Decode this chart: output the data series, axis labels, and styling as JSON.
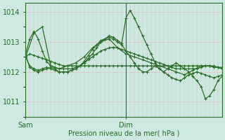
{
  "xlabel": "Pression niveau de la mer( hPa )",
  "ylim": [
    1010.5,
    1014.3
  ],
  "xlim": [
    0,
    47
  ],
  "yticks": [
    1011,
    1012,
    1013,
    1014
  ],
  "xtick_labels": [
    "Sam",
    "Dim"
  ],
  "xtick_positions": [
    0,
    24
  ],
  "vline_x": 24,
  "bg_color": "#cce8e0",
  "plot_bg_color": "#cce8e0",
  "line_color": "#2d6e2d",
  "marker": "+",
  "markersize": 3.5,
  "linewidth": 0.9,
  "series": [
    {
      "x": [
        0,
        1,
        2,
        3,
        4,
        5,
        6,
        7,
        8,
        9,
        10,
        11,
        12,
        13,
        14,
        15,
        16,
        17,
        18,
        19,
        20,
        21,
        22,
        23,
        24,
        25,
        26,
        27,
        28,
        29,
        30,
        31,
        32,
        33,
        34,
        35,
        36,
        37,
        38,
        39,
        40,
        41,
        42,
        43,
        44,
        45,
        46,
        47
      ],
      "y": [
        1012.5,
        1012.6,
        1012.55,
        1012.5,
        1012.45,
        1012.4,
        1012.35,
        1012.3,
        1012.25,
        1012.2,
        1012.2,
        1012.2,
        1012.2,
        1012.2,
        1012.2,
        1012.2,
        1012.2,
        1012.2,
        1012.2,
        1012.2,
        1012.2,
        1012.2,
        1012.2,
        1012.2,
        1012.2,
        1012.2,
        1012.2,
        1012.2,
        1012.2,
        1012.2,
        1012.2,
        1012.2,
        1012.2,
        1012.2,
        1012.2,
        1012.2,
        1012.2,
        1012.2,
        1012.2,
        1012.2,
        1012.2,
        1012.2,
        1012.2,
        1012.2,
        1012.2,
        1012.2,
        1012.15,
        1012.1
      ]
    },
    {
      "x": [
        0,
        1,
        2,
        3,
        4,
        5,
        6,
        7,
        8,
        9,
        10,
        11,
        12,
        13,
        14,
        15,
        16,
        17,
        18,
        19,
        20,
        21,
        22,
        23,
        24,
        25,
        26,
        27,
        28,
        29,
        30,
        31,
        32,
        33,
        34,
        35,
        36,
        37,
        38,
        39,
        40,
        41,
        42,
        43,
        44,
        45,
        46,
        47
      ],
      "y": [
        1012.6,
        1013.1,
        1013.35,
        1013.1,
        1012.7,
        1012.35,
        1012.2,
        1012.15,
        1012.1,
        1012.1,
        1012.1,
        1012.1,
        1012.15,
        1012.2,
        1012.3,
        1012.4,
        1012.5,
        1012.6,
        1012.7,
        1012.75,
        1012.8,
        1012.82,
        1012.8,
        1012.75,
        1012.7,
        1012.65,
        1012.6,
        1012.55,
        1012.5,
        1012.45,
        1012.4,
        1012.35,
        1012.3,
        1012.25,
        1012.2,
        1012.15,
        1012.1,
        1012.1,
        1012.1,
        1012.1,
        1012.1,
        1012.1,
        1012.15,
        1012.2,
        1012.2,
        1012.15,
        1012.15,
        1012.15
      ]
    },
    {
      "x": [
        0,
        1,
        2,
        3,
        4,
        5,
        6,
        7,
        8,
        9,
        10,
        11,
        12,
        13,
        14,
        15,
        16,
        17,
        18,
        19,
        20,
        21,
        22,
        23,
        24,
        25,
        26,
        27,
        28,
        29,
        30,
        31,
        32,
        33,
        34,
        35,
        36,
        37,
        38,
        39,
        40,
        41,
        42,
        43,
        44,
        45,
        46,
        47
      ],
      "y": [
        1012.5,
        1012.2,
        1012.1,
        1012.05,
        1012.1,
        1012.15,
        1012.1,
        1012.05,
        1012.0,
        1012.0,
        1012.0,
        1012.05,
        1012.1,
        1012.2,
        1012.3,
        1012.45,
        1012.6,
        1012.8,
        1013.0,
        1013.1,
        1013.2,
        1013.15,
        1013.05,
        1012.95,
        1013.8,
        1014.05,
        1013.8,
        1013.5,
        1013.2,
        1012.9,
        1012.6,
        1012.3,
        1012.1,
        1012.0,
        1012.1,
        1012.2,
        1012.3,
        1012.2,
        1012.1,
        1012.0,
        1011.85,
        1011.7,
        1011.5,
        1011.1,
        1011.2,
        1011.4,
        1011.7,
        1011.85
      ]
    },
    {
      "x": [
        0,
        1,
        2,
        3,
        4,
        5,
        6,
        7,
        8,
        9,
        10,
        11,
        12,
        13,
        14,
        15,
        16,
        17,
        18,
        19,
        20,
        21,
        22,
        23,
        24,
        25,
        26,
        27,
        28,
        29,
        30,
        31,
        32,
        33,
        34,
        35,
        36,
        37,
        38,
        39,
        40,
        41,
        42,
        43,
        44,
        45,
        46,
        47
      ],
      "y": [
        1012.55,
        1012.15,
        1012.05,
        1012.0,
        1012.05,
        1012.1,
        1012.15,
        1012.1,
        1012.0,
        1012.0,
        1012.0,
        1012.05,
        1012.1,
        1012.2,
        1012.35,
        1012.55,
        1012.75,
        1012.9,
        1013.05,
        1013.1,
        1013.15,
        1013.1,
        1013.0,
        1012.9,
        1012.7,
        1012.5,
        1012.3,
        1012.1,
        1012.0,
        1012.0,
        1012.1,
        1012.2,
        1012.1,
        1012.0,
        1011.9,
        1011.8,
        1011.75,
        1011.7,
        1011.8,
        1011.9,
        1011.95,
        1012.0,
        1011.95,
        1011.9,
        1011.85,
        1011.8,
        1011.85,
        1011.9
      ]
    },
    {
      "x": [
        0,
        2,
        4,
        6,
        8,
        10,
        12,
        14,
        16,
        18,
        20,
        22,
        24,
        26,
        28,
        30,
        32,
        34,
        36,
        38,
        40,
        42,
        44,
        46,
        47
      ],
      "y": [
        1012.5,
        1013.3,
        1013.5,
        1012.2,
        1012.1,
        1012.2,
        1012.3,
        1012.5,
        1012.8,
        1013.0,
        1013.1,
        1012.8,
        1012.6,
        1012.5,
        1012.4,
        1012.3,
        1012.2,
        1012.1,
        1012.0,
        1011.9,
        1012.05,
        1012.2,
        1012.2,
        1012.15,
        1012.1
      ]
    }
  ]
}
